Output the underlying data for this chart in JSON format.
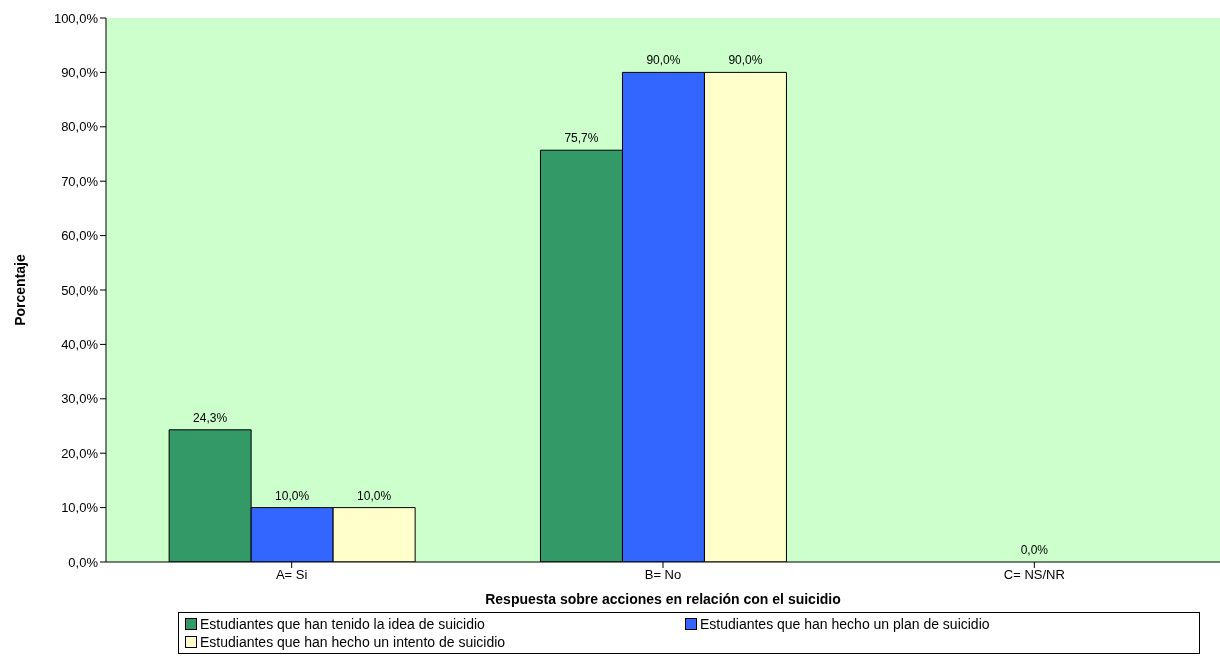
{
  "chart_data": {
    "type": "bar",
    "xlabel": "Respuesta sobre acciones en relación con el suicidio",
    "ylabel": "Porcentaje",
    "categories": [
      "A= Si",
      "B= No",
      "C= NS/NR"
    ],
    "series": [
      {
        "name": "Estudiantes que han tenido la idea de suicidio",
        "color": "#339966",
        "values": [
          24.3,
          75.7,
          null
        ],
        "value_labels": [
          "24,3%",
          "75,7%",
          null
        ]
      },
      {
        "name": "Estudiantes que han hecho un plan de suicidio",
        "color": "#3366ff",
        "values": [
          10,
          90,
          0
        ],
        "value_labels": [
          "10,0%",
          "90,0%",
          "0,0%"
        ]
      },
      {
        "name": "Estudiantes que han hecho un intento de suicidio",
        "color": "#ffffcc",
        "values": [
          10,
          90,
          null
        ],
        "value_labels": [
          "10,0%",
          "90,0%",
          null
        ]
      }
    ],
    "ylim": [
      0,
      100
    ],
    "yticks": [
      {
        "value": 0,
        "label": "0,0%"
      },
      {
        "value": 10,
        "label": "10,0%"
      },
      {
        "value": 20,
        "label": "20,0%"
      },
      {
        "value": 30,
        "label": "30,0%"
      },
      {
        "value": 40,
        "label": "40,0%"
      },
      {
        "value": 50,
        "label": "50,0%"
      },
      {
        "value": 60,
        "label": "60,0%"
      },
      {
        "value": 70,
        "label": "70,0%"
      },
      {
        "value": 80,
        "label": "80,0%"
      },
      {
        "value": 90,
        "label": "90,0%"
      },
      {
        "value": 100,
        "label": "100,0%"
      }
    ],
    "grid": false,
    "legend": "bottom"
  }
}
